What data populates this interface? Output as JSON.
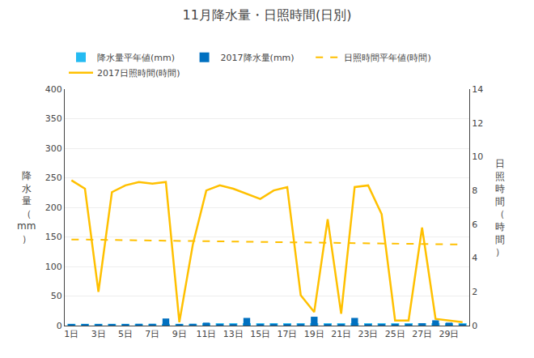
{
  "chart_data": {
    "type": "bar",
    "title": "11月降水量・日照時間(日別)",
    "x": [
      1,
      2,
      3,
      4,
      5,
      6,
      7,
      8,
      9,
      10,
      11,
      12,
      13,
      14,
      15,
      16,
      17,
      18,
      19,
      20,
      21,
      22,
      23,
      24,
      25,
      26,
      27,
      28,
      29,
      30
    ],
    "xlim": [
      0.5,
      30.5
    ],
    "xticks": [
      {
        "value": 1,
        "label": "1日"
      },
      {
        "value": 3,
        "label": "3日"
      },
      {
        "value": 5,
        "label": "5日"
      },
      {
        "value": 7,
        "label": "7日"
      },
      {
        "value": 9,
        "label": "9日"
      },
      {
        "value": 11,
        "label": "11日"
      },
      {
        "value": 13,
        "label": "13日"
      },
      {
        "value": 15,
        "label": "15日"
      },
      {
        "value": 17,
        "label": "17日"
      },
      {
        "value": 19,
        "label": "19日"
      },
      {
        "value": 21,
        "label": "21日"
      },
      {
        "value": 23,
        "label": "23日"
      },
      {
        "value": 25,
        "label": "25日"
      },
      {
        "value": 27,
        "label": "27日"
      },
      {
        "value": 29,
        "label": "29日"
      }
    ],
    "ylabel": "降\n水\n量\n（\nmm\n）",
    "y2label": "日\n照\n時\n間\n（\n時\n間\n）",
    "ylim": [
      0,
      400
    ],
    "yticks": [
      0,
      50,
      100,
      150,
      200,
      250,
      300,
      350,
      400
    ],
    "y2lim": [
      0,
      14
    ],
    "y2ticks": [
      0,
      2,
      4,
      6,
      8,
      10,
      12,
      14
    ],
    "grid": true,
    "legend": "top",
    "series": [
      {
        "name": "降水量平年値(mm)",
        "type": "bar",
        "color": "#00B0F0",
        "values": [
          3,
          3,
          3,
          3,
          3,
          3,
          3,
          3,
          3,
          3,
          4,
          4,
          4,
          4,
          4,
          4,
          4,
          4,
          4,
          4,
          4,
          4,
          4,
          4,
          4,
          4,
          4,
          4,
          4,
          4
        ]
      },
      {
        "name": "2017降水量(mm)",
        "type": "bar",
        "color": "#0070C0",
        "values": [
          2,
          2,
          2,
          2,
          2,
          3,
          3,
          12,
          2,
          3,
          5,
          2,
          2,
          13,
          2,
          3,
          2,
          3,
          15,
          2,
          2,
          13,
          2,
          2,
          2,
          2,
          4,
          9,
          5,
          2
        ]
      },
      {
        "name": "日照時間平年値(時間)",
        "type": "line",
        "axis": "y2",
        "color": "#FFC000",
        "line_style": "dashed",
        "x": [
          1,
          30
        ],
        "values": [
          5.1,
          4.8
        ]
      },
      {
        "name": "2017日照時間(時間)",
        "type": "line",
        "axis": "y2",
        "color": "#FFC000",
        "line_style": "solid",
        "values": [
          8.6,
          8.1,
          2.0,
          7.9,
          8.3,
          8.5,
          8.4,
          8.5,
          0.2,
          4.8,
          8.0,
          8.3,
          8.1,
          7.8,
          7.5,
          8.0,
          8.2,
          1.8,
          0.8,
          6.3,
          0.7,
          8.2,
          8.3,
          6.6,
          0.3,
          0.3,
          5.8,
          0.4,
          0.3,
          0.2
        ]
      }
    ]
  }
}
